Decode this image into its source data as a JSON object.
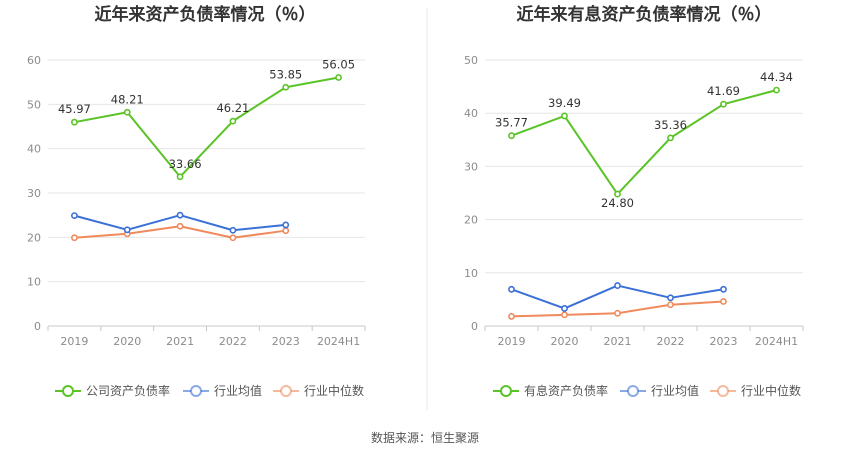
{
  "colors": {
    "company": "#5ac325",
    "avg": "#3b70d6",
    "median": "#ef8a5c",
    "grid": "#e6e6e6",
    "axis": "#c8c8c8",
    "divider": "#e8e8e8"
  },
  "source_text": "数据来源：恒生聚源",
  "chart_data": [
    {
      "type": "line",
      "title": "近年来资产负债率情况（％）",
      "categories": [
        "2019",
        "2020",
        "2021",
        "2022",
        "2023",
        "2024H1"
      ],
      "ylim": [
        0,
        60
      ],
      "yticks": [
        0,
        10,
        20,
        30,
        40,
        50,
        60
      ],
      "series": [
        {
          "name": "公司资产负债率",
          "key": "company",
          "values": [
            45.97,
            48.21,
            33.66,
            46.21,
            53.85,
            56.05
          ],
          "labels": [
            "45.97",
            "48.21",
            "33.66",
            "46.21",
            "53.85",
            "56.05"
          ]
        },
        {
          "name": "行业均值",
          "key": "avg",
          "values": [
            24.9,
            21.7,
            25.0,
            21.6,
            22.8,
            null
          ]
        },
        {
          "name": "行业中位数",
          "key": "median",
          "values": [
            19.9,
            20.8,
            22.5,
            19.9,
            21.5,
            null
          ]
        }
      ]
    },
    {
      "type": "line",
      "title": "近年来有息资产负债率情况（％）",
      "categories": [
        "2019",
        "2020",
        "2021",
        "2022",
        "2023",
        "2024H1"
      ],
      "ylim": [
        0,
        50
      ],
      "yticks": [
        0,
        10,
        20,
        30,
        40,
        50
      ],
      "series": [
        {
          "name": "有息资产负债率",
          "key": "company",
          "values": [
            35.77,
            39.49,
            24.8,
            35.36,
            41.69,
            44.34
          ],
          "labels": [
            "35.77",
            "39.49",
            "24.80",
            "35.36",
            "41.69",
            "44.34"
          ]
        },
        {
          "name": "行业均值",
          "key": "avg",
          "values": [
            6.9,
            3.3,
            7.6,
            5.3,
            6.9,
            null
          ]
        },
        {
          "name": "行业中位数",
          "key": "median",
          "values": [
            1.8,
            2.1,
            2.4,
            4.0,
            4.6,
            null
          ]
        }
      ]
    }
  ]
}
